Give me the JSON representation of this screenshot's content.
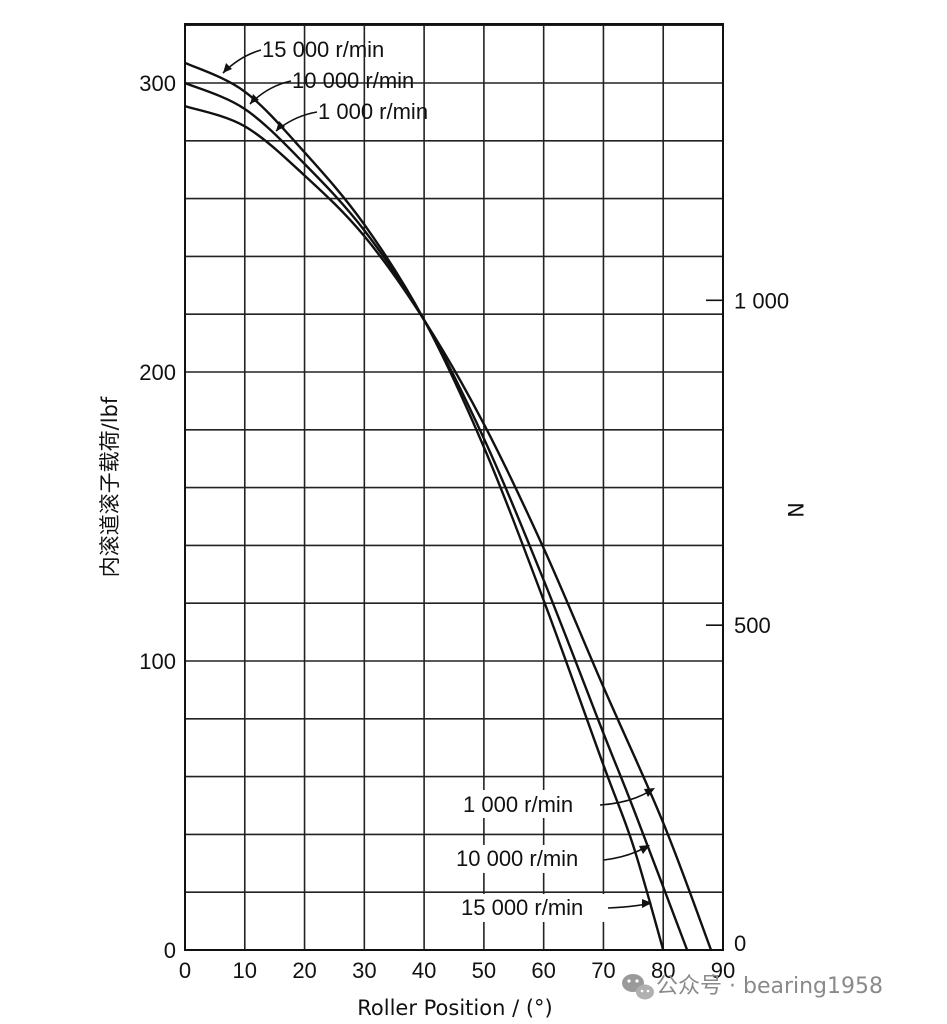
{
  "chart_data": {
    "type": "line",
    "xlabel": "Roller Position / (°)",
    "ylabel": "内滚道滚子载荷/lbf",
    "y2label": "N",
    "xlim": [
      0,
      90
    ],
    "ylim": [
      0,
      300
    ],
    "x_ticks": [
      0,
      10,
      20,
      30,
      40,
      50,
      60,
      70,
      80,
      90
    ],
    "y_ticks": [
      0,
      100,
      200,
      300
    ],
    "y2_ticks": [
      {
        "label": "0",
        "value_N": 0
      },
      {
        "label": "500",
        "value_N": 500
      },
      {
        "label": "1 000",
        "value_N": 1000
      }
    ],
    "grid": true,
    "series": [
      {
        "name": "15 000 r/min",
        "x": [
          0,
          10,
          20,
          30,
          40,
          50,
          60,
          70,
          75,
          80
        ],
        "y": [
          307,
          297,
          276,
          251,
          218,
          174,
          121,
          64,
          36,
          0
        ]
      },
      {
        "name": "10 000 r/min",
        "x": [
          0,
          10,
          20,
          30,
          40,
          50,
          60,
          70,
          75,
          84
        ],
        "y": [
          300,
          291,
          272,
          249,
          218,
          177,
          128,
          75,
          49,
          0
        ]
      },
      {
        "name": "1 000 r/min",
        "x": [
          0,
          10,
          20,
          30,
          40,
          50,
          60,
          70,
          80,
          88
        ],
        "y": [
          292,
          285,
          268,
          247,
          218,
          182,
          139,
          91,
          44,
          0
        ]
      }
    ],
    "annotations_top": [
      "15 000 r/min",
      "10 000 r/min",
      "1 000 r/min"
    ],
    "annotations_bottom": [
      "1 000 r/min",
      "10 000 r/min",
      "15 000 r/min"
    ]
  },
  "watermark": {
    "icon": "wechat-icon",
    "text": "公众号 · bearing1958"
  }
}
